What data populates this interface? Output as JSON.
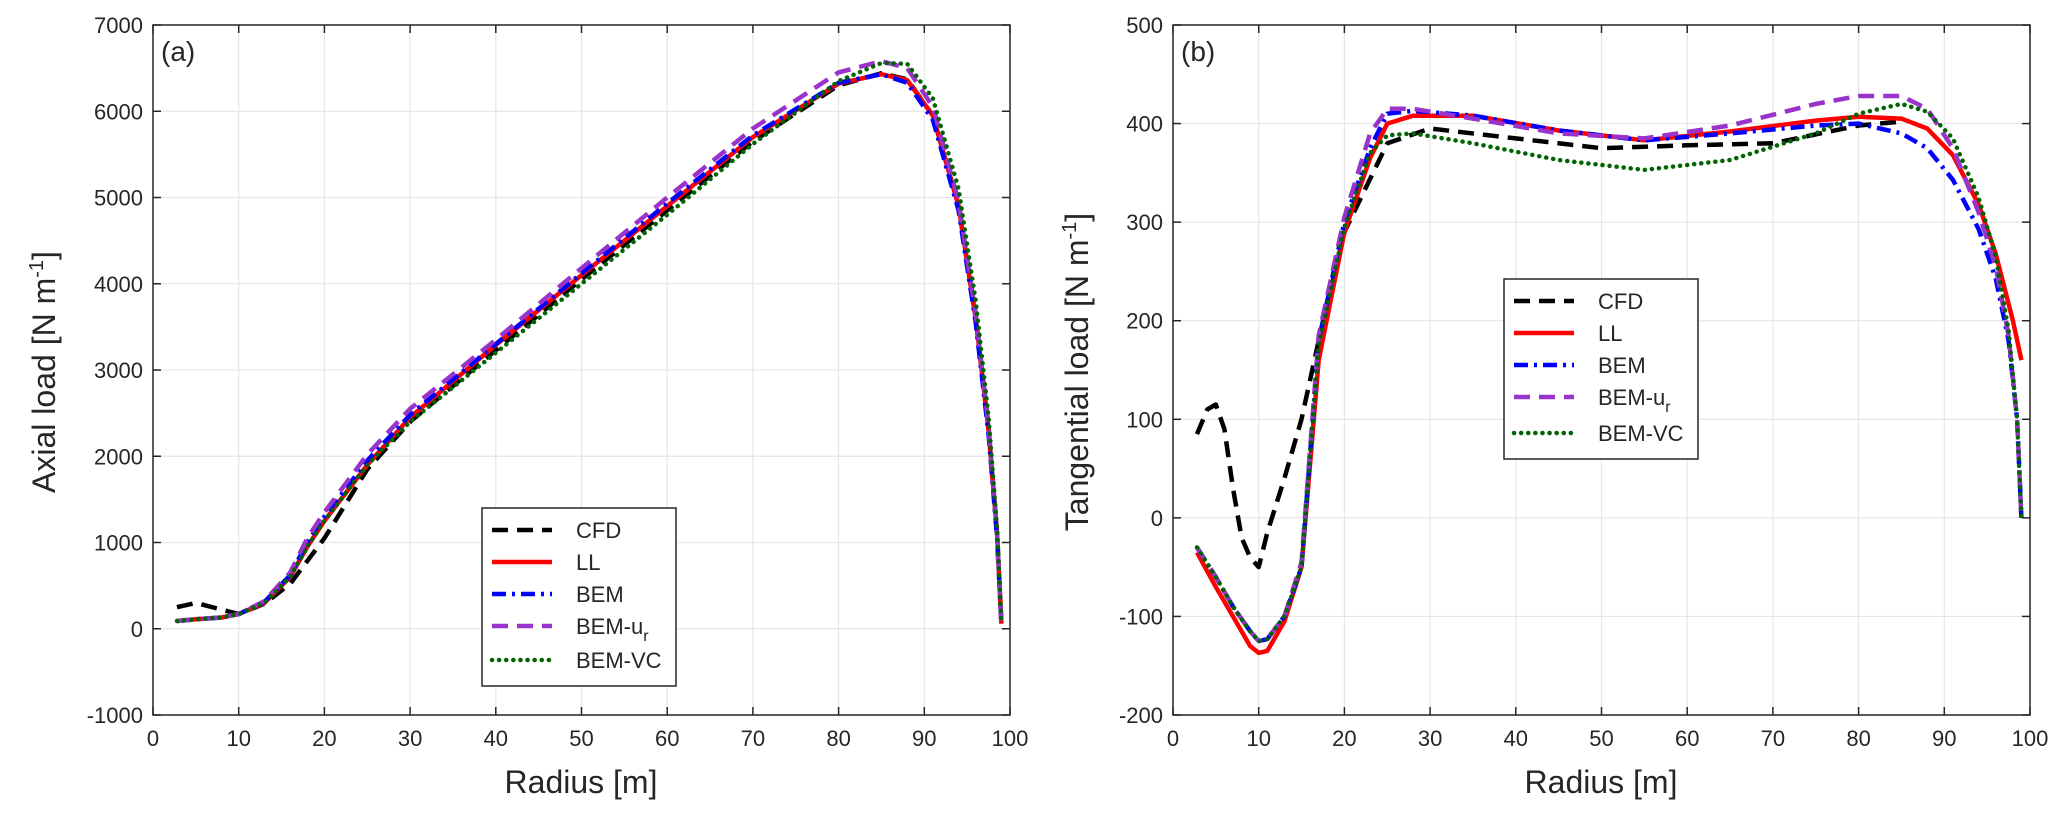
{
  "chart_data": [
    {
      "type": "line",
      "panel_label": "(a)",
      "xlabel": "Radius [m]",
      "ylabel_main": "Axial load [N m",
      "ylabel_sup": "-1",
      "ylabel_close": "]",
      "xlim": [
        0,
        100
      ],
      "ylim": [
        -1000,
        7000
      ],
      "xticks": [
        0,
        10,
        20,
        30,
        40,
        50,
        60,
        70,
        80,
        90,
        100
      ],
      "xtick_labels": [
        "0",
        "10",
        "20",
        "30",
        "40",
        "50",
        "60",
        "70",
        "80",
        "90",
        "100"
      ],
      "yticks": [
        -1000,
        0,
        1000,
        2000,
        3000,
        4000,
        5000,
        6000,
        7000
      ],
      "ytick_labels": [
        "-1000",
        "0",
        "1000",
        "2000",
        "3000",
        "4000",
        "5000",
        "6000",
        "7000"
      ],
      "grid": true,
      "legend_position": "lower-center",
      "series": [
        {
          "name": "CFD",
          "label_main": "CFD",
          "label_sub": "",
          "style": "dashed",
          "color": "#000000",
          "x": [
            2.8,
            5,
            10,
            13,
            16,
            20,
            25,
            30,
            40,
            50,
            60,
            70,
            80,
            85,
            88,
            91,
            94,
            96,
            97.5,
            98.5,
            99
          ],
          "y": [
            250,
            300,
            170,
            290,
            520,
            1050,
            1850,
            2400,
            3230,
            4050,
            4850,
            5650,
            6300,
            6440,
            6370,
            5950,
            4900,
            3600,
            2300,
            1100,
            60
          ]
        },
        {
          "name": "LL",
          "label_main": "LL",
          "label_sub": "",
          "style": "solid",
          "color": "#ff0000",
          "x": [
            2.8,
            5,
            8,
            10,
            13,
            16,
            18,
            20,
            25,
            30,
            40,
            50,
            60,
            70,
            80,
            85,
            88,
            91,
            94,
            96,
            97.5,
            98.5,
            99
          ],
          "y": [
            90,
            110,
            130,
            170,
            300,
            600,
            950,
            1250,
            1900,
            2450,
            3290,
            4100,
            4900,
            5700,
            6320,
            6430,
            6360,
            5950,
            4900,
            3600,
            2300,
            1100,
            60
          ]
        },
        {
          "name": "BEM",
          "label_main": "BEM",
          "label_sub": "",
          "style": "dashdot",
          "color": "#0000ff",
          "x": [
            2.8,
            5,
            8,
            10,
            13,
            16,
            18,
            20,
            25,
            30,
            40,
            50,
            60,
            70,
            80,
            85,
            88,
            91,
            94,
            96,
            97.5,
            98.5,
            99
          ],
          "y": [
            90,
            110,
            130,
            170,
            310,
            620,
            1000,
            1300,
            1950,
            2480,
            3300,
            4120,
            4930,
            5720,
            6330,
            6430,
            6330,
            5900,
            4850,
            3550,
            2250,
            1050,
            60
          ]
        },
        {
          "name": "BEM-u_r",
          "label_main": "BEM-u",
          "label_sub": "r",
          "style": "dashed",
          "color": "#9933cc",
          "x": [
            2.8,
            5,
            8,
            10,
            13,
            16,
            18,
            20,
            25,
            30,
            40,
            50,
            60,
            70,
            80,
            85,
            88,
            91,
            94,
            96,
            97.5,
            98.5,
            99
          ],
          "y": [
            90,
            110,
            130,
            170,
            320,
            650,
            1050,
            1350,
            2020,
            2550,
            3350,
            4180,
            5000,
            5800,
            6450,
            6580,
            6500,
            6050,
            4950,
            3650,
            2350,
            1100,
            60
          ]
        },
        {
          "name": "BEM-VC",
          "label_main": "BEM-VC",
          "label_sub": "",
          "style": "dotted",
          "color": "#006400",
          "x": [
            2.8,
            5,
            8,
            10,
            13,
            16,
            18,
            20,
            25,
            30,
            40,
            50,
            60,
            70,
            80,
            85,
            88,
            91,
            94,
            96,
            97.5,
            98.5,
            99
          ],
          "y": [
            90,
            110,
            130,
            170,
            300,
            600,
            950,
            1250,
            1900,
            2400,
            3200,
            4000,
            4800,
            5620,
            6350,
            6560,
            6550,
            6150,
            5100,
            3800,
            2450,
            1150,
            60
          ]
        }
      ]
    },
    {
      "type": "line",
      "panel_label": "(b)",
      "xlabel": "Radius [m]",
      "ylabel_main": "Tangential load [N m",
      "ylabel_sup": "-1",
      "ylabel_close": "]",
      "xlim": [
        0,
        100
      ],
      "ylim": [
        -200,
        500
      ],
      "xticks": [
        0,
        10,
        20,
        30,
        40,
        50,
        60,
        70,
        80,
        90,
        100
      ],
      "xtick_labels": [
        "0",
        "10",
        "20",
        "30",
        "40",
        "50",
        "60",
        "70",
        "80",
        "90",
        "100"
      ],
      "yticks": [
        -200,
        -100,
        0,
        100,
        200,
        300,
        400,
        500
      ],
      "ytick_labels": [
        "-200",
        "-100",
        "0",
        "100",
        "200",
        "300",
        "400",
        "500"
      ],
      "grid": true,
      "legend_position": "center",
      "series": [
        {
          "name": "CFD",
          "label_main": "CFD",
          "label_sub": "",
          "style": "dashed",
          "color": "#000000",
          "x": [
            2.8,
            4,
            5,
            6,
            7,
            8,
            9,
            10,
            11,
            13,
            15,
            17,
            20,
            25,
            30,
            40,
            50,
            60,
            70,
            80,
            85
          ],
          "y": [
            85,
            110,
            115,
            90,
            30,
            -20,
            -40,
            -50,
            -15,
            40,
            100,
            180,
            290,
            380,
            395,
            385,
            375,
            378,
            380,
            398,
            402
          ]
        },
        {
          "name": "LL",
          "label_main": "LL",
          "label_sub": "",
          "style": "solid",
          "color": "#ff0000",
          "x": [
            2.8,
            5,
            7,
            9,
            10,
            11,
            13,
            15,
            17,
            20,
            23,
            25,
            28,
            35,
            45,
            55,
            65,
            75,
            80,
            85,
            88,
            91,
            94,
            96,
            98,
            99
          ],
          "y": [
            -35,
            -70,
            -100,
            -130,
            -137,
            -135,
            -105,
            -50,
            160,
            290,
            365,
            400,
            408,
            408,
            393,
            383,
            392,
            403,
            407,
            405,
            395,
            368,
            318,
            268,
            200,
            160
          ]
        },
        {
          "name": "BEM",
          "label_main": "BEM",
          "label_sub": "",
          "style": "dashdot",
          "color": "#0000ff",
          "x": [
            2.8,
            5,
            7,
            9,
            10,
            11,
            13,
            15,
            17,
            20,
            23,
            25,
            28,
            35,
            45,
            55,
            65,
            75,
            80,
            85,
            88,
            91,
            94,
            96,
            97.5,
            98.5,
            99
          ],
          "y": [
            -30,
            -60,
            -90,
            -115,
            -125,
            -123,
            -100,
            -50,
            180,
            300,
            375,
            410,
            413,
            408,
            393,
            383,
            390,
            398,
            400,
            390,
            375,
            343,
            293,
            243,
            180,
            100,
            0
          ]
        },
        {
          "name": "BEM-u_r",
          "label_main": "BEM-u",
          "label_sub": "r",
          "style": "dashed",
          "color": "#9933cc",
          "x": [
            2.8,
            5,
            7,
            9,
            10,
            11,
            13,
            15,
            17,
            20,
            23,
            25,
            28,
            35,
            45,
            55,
            65,
            75,
            80,
            85,
            88,
            91,
            94,
            96,
            97.5,
            98.5,
            99
          ],
          "y": [
            -30,
            -60,
            -90,
            -115,
            -125,
            -123,
            -100,
            -45,
            185,
            305,
            390,
            415,
            415,
            405,
            390,
            385,
            398,
            420,
            428,
            428,
            415,
            375,
            310,
            255,
            185,
            100,
            0
          ]
        },
        {
          "name": "BEM-VC",
          "label_main": "BEM-VC",
          "label_sub": "",
          "style": "dotted",
          "color": "#006400",
          "x": [
            2.8,
            5,
            7,
            9,
            10,
            11,
            13,
            15,
            17,
            20,
            23,
            25,
            28,
            35,
            45,
            55,
            65,
            75,
            80,
            85,
            88,
            91,
            94,
            96,
            97.5,
            98.5,
            99
          ],
          "y": [
            -30,
            -60,
            -90,
            -115,
            -125,
            -123,
            -100,
            -50,
            175,
            295,
            370,
            388,
            390,
            380,
            363,
            353,
            363,
            390,
            410,
            420,
            412,
            385,
            325,
            265,
            190,
            100,
            0
          ]
        }
      ]
    }
  ]
}
